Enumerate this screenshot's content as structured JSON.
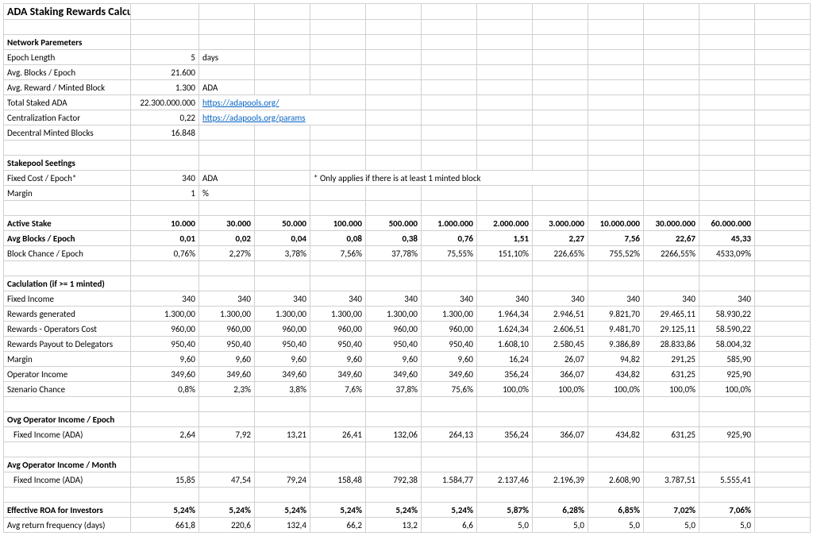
{
  "title": "ADA Staking Rewards Calculation",
  "sections": {
    "network": "Network Paremeters",
    "stakepool": "Stakepool Seetings",
    "calc": "Caclulation (if >= 1 minted)",
    "ovgEpoch": "Ovg Operator Income / Epoch",
    "avgMonth": "Avg Operator Income / Month"
  },
  "np": {
    "epochLenLabel": "Epoch Length",
    "epochLen": "5",
    "epochUnit": "days",
    "blocksLabel": "Avg. Blocks / Epoch",
    "blocks": "21.600",
    "rewardLabel": "Avg. Reward / Minted Block",
    "reward": "1.300",
    "rewardUnit": "ADA",
    "stakedLabel": "Total Staked ADA",
    "staked": "22.300.000.000",
    "link1": "https://adapools.org/",
    "centralLabel": "Centralization Factor",
    "central": "0,22",
    "link2": "https://adapools.org/params",
    "decentralLabel": "Decentral Minted Blocks",
    "decentral": "16.848"
  },
  "sp": {
    "fixedLabel": "Fixed Cost / Epoch*",
    "fixed": "340",
    "fixedUnit": "ADA",
    "note": "* Only applies if there is at least 1 minted block",
    "marginLabel": "Margin",
    "margin": "1",
    "marginUnit": "%"
  },
  "hdr": {
    "activeStake": "Active Stake",
    "avgBlocks": "Avg Blocks / Epoch",
    "blockChance": "Block Chance / Epoch",
    "fixedIncome": "Fixed Income",
    "rewardsGen": "Rewards generated",
    "rewardsOp": "Rewards - Operators Cost",
    "rewardsDel": "Rewards Payout to Delegators",
    "margin": "Margin",
    "opIncome": "Operator Income",
    "scenario": "Szenario Chance",
    "fixedADA": "Fixed Income (ADA)",
    "roa": "Effective ROA for Investors",
    "freq": "Avg return frequency (days)"
  },
  "cols": {
    "stake": [
      "10.000",
      "30.000",
      "50.000",
      "100.000",
      "500.000",
      "1.000.000",
      "2.000.000",
      "3.000.000",
      "10.000.000",
      "30.000.000",
      "60.000.000"
    ],
    "avgBlk": [
      "0,01",
      "0,02",
      "0,04",
      "0,08",
      "0,38",
      "0,76",
      "1,51",
      "2,27",
      "7,56",
      "22,67",
      "45,33"
    ],
    "blkCh": [
      "0,76%",
      "2,27%",
      "3,78%",
      "7,56%",
      "37,78%",
      "75,55%",
      "151,10%",
      "226,65%",
      "755,52%",
      "2266,55%",
      "4533,09%"
    ],
    "fixInc": [
      "340",
      "340",
      "340",
      "340",
      "340",
      "340",
      "340",
      "340",
      "340",
      "340",
      "340"
    ],
    "rewGen": [
      "1.300,00",
      "1.300,00",
      "1.300,00",
      "1.300,00",
      "1.300,00",
      "1.300,00",
      "1.964,34",
      "2.946,51",
      "9.821,70",
      "29.465,11",
      "58.930,22"
    ],
    "rewOp": [
      "960,00",
      "960,00",
      "960,00",
      "960,00",
      "960,00",
      "960,00",
      "1.624,34",
      "2.606,51",
      "9.481,70",
      "29.125,11",
      "58.590,22"
    ],
    "rewDel": [
      "950,40",
      "950,40",
      "950,40",
      "950,40",
      "950,40",
      "950,40",
      "1.608,10",
      "2.580,45",
      "9.386,89",
      "28.833,86",
      "58.004,32"
    ],
    "margin": [
      "9,60",
      "9,60",
      "9,60",
      "9,60",
      "9,60",
      "9,60",
      "16,24",
      "26,07",
      "94,82",
      "291,25",
      "585,90"
    ],
    "opInc": [
      "349,60",
      "349,60",
      "349,60",
      "349,60",
      "349,60",
      "349,60",
      "356,24",
      "366,07",
      "434,82",
      "631,25",
      "925,90"
    ],
    "scen": [
      "0,8%",
      "2,3%",
      "3,8%",
      "7,6%",
      "37,8%",
      "75,6%",
      "100,0%",
      "100,0%",
      "100,0%",
      "100,0%",
      "100,0%"
    ],
    "ovgEp": [
      "2,64",
      "7,92",
      "13,21",
      "26,41",
      "132,06",
      "264,13",
      "356,24",
      "366,07",
      "434,82",
      "631,25",
      "925,90"
    ],
    "avgMo": [
      "15,85",
      "47,54",
      "79,24",
      "158,48",
      "792,38",
      "1.584,77",
      "2.137,46",
      "2.196,39",
      "2.608,90",
      "3.787,51",
      "5.555,41"
    ],
    "roa": [
      "5,24%",
      "5,24%",
      "5,24%",
      "5,24%",
      "5,24%",
      "5,24%",
      "5,87%",
      "6,28%",
      "6,85%",
      "7,02%",
      "7,06%"
    ],
    "freq": [
      "661,8",
      "220,6",
      "132,4",
      "66,2",
      "13,2",
      "6,6",
      "5,0",
      "5,0",
      "5,0",
      "5,0",
      "5,0"
    ]
  }
}
